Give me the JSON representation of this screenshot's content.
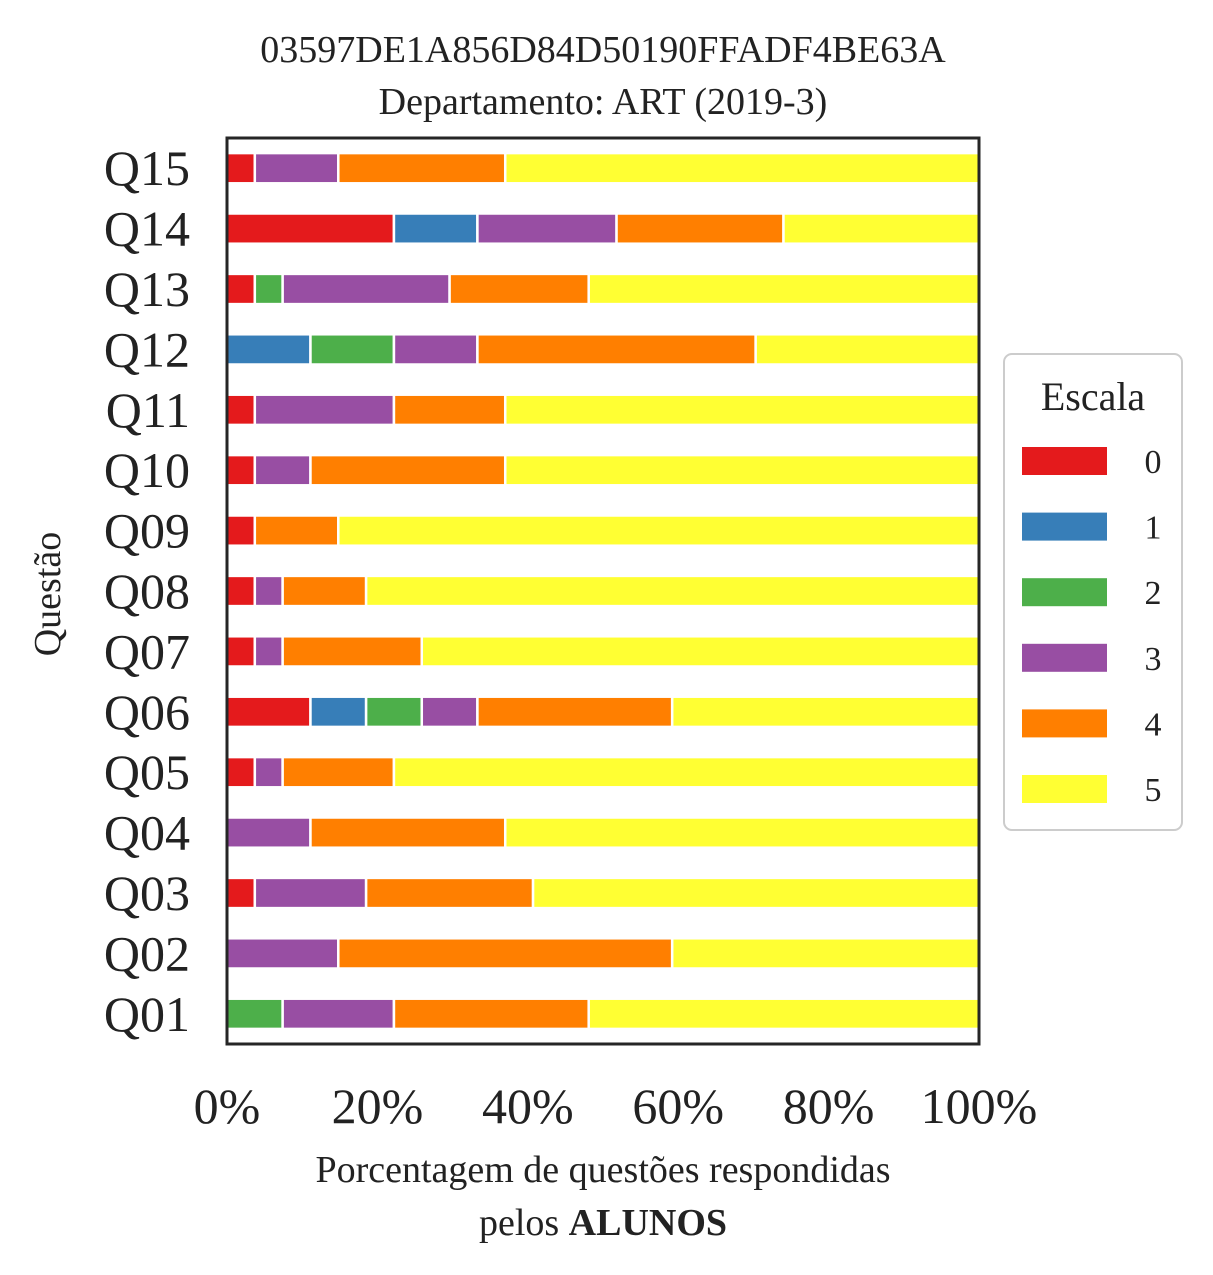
{
  "chart_data": {
    "type": "bar",
    "orientation": "horizontal",
    "stacked": true,
    "title_lines": [
      "03597DE1A856D84D50190FFADF4BE63A",
      "Departamento: ART (2019-3)"
    ],
    "xlabel": "Porcentagem de questões respondidas",
    "xlabel_line2_prefix": "pelos ",
    "xlabel_line2_bold": "ALUNOS",
    "ylabel": "Questão",
    "xlim": [
      0,
      100
    ],
    "xticks": [
      "0%",
      "20%",
      "40%",
      "60%",
      "80%",
      "100%"
    ],
    "categories": [
      "Q01",
      "Q02",
      "Q03",
      "Q04",
      "Q05",
      "Q06",
      "Q07",
      "Q08",
      "Q09",
      "Q10",
      "Q11",
      "Q12",
      "Q13",
      "Q14",
      "Q15"
    ],
    "legend_title": "Escala",
    "legend_position": "right",
    "grid": false,
    "series": [
      {
        "name": "0",
        "color": "#e41a1c",
        "values": [
          0,
          0,
          3.7,
          0,
          3.7,
          11.1,
          3.7,
          3.7,
          3.7,
          3.7,
          3.7,
          0,
          3.7,
          22.2,
          3.7
        ]
      },
      {
        "name": "1",
        "color": "#377eb8",
        "values": [
          0,
          0,
          0,
          0,
          0,
          7.4,
          0,
          0,
          0,
          0,
          0,
          11.1,
          0,
          11.1,
          0
        ]
      },
      {
        "name": "2",
        "color": "#4daf4a",
        "values": [
          7.4,
          0,
          0,
          0,
          0,
          7.4,
          0,
          0,
          0,
          0,
          0,
          11.1,
          3.7,
          0,
          0
        ]
      },
      {
        "name": "3",
        "color": "#984ea3",
        "values": [
          14.8,
          14.8,
          14.8,
          11.1,
          3.7,
          7.4,
          3.7,
          3.7,
          0,
          7.4,
          18.5,
          11.1,
          22.2,
          18.5,
          11.1
        ]
      },
      {
        "name": "4",
        "color": "#ff7f00",
        "values": [
          25.9,
          44.4,
          22.2,
          25.9,
          14.8,
          25.9,
          18.5,
          11.1,
          11.1,
          25.9,
          14.8,
          37.0,
          18.5,
          22.2,
          22.2
        ]
      },
      {
        "name": "5",
        "color": "#ffff33",
        "values": [
          51.9,
          40.8,
          59.3,
          63.0,
          77.8,
          40.8,
          74.1,
          81.5,
          85.2,
          63.0,
          63.0,
          29.7,
          51.9,
          26.0,
          63.0
        ]
      }
    ]
  }
}
